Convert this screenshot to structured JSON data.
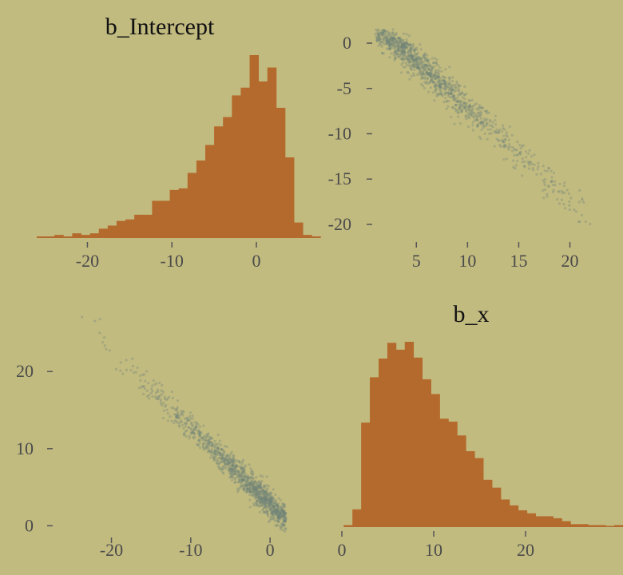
{
  "chart_data": [
    {
      "type": "bar",
      "panel": "top-left",
      "title": "b_Intercept",
      "xlim": [
        -26,
        3.5
      ],
      "x_ticks": [
        "-20",
        "-10",
        "0"
      ],
      "x_tick_values": [
        -20,
        -10,
        0
      ],
      "bin_start": -26,
      "bin_width": 1.05,
      "counts": [
        1,
        1,
        2,
        1,
        3,
        2,
        3,
        6,
        8,
        11,
        12,
        15,
        15,
        24,
        24,
        31,
        32,
        42,
        50,
        60,
        72,
        78,
        92,
        97,
        118,
        101,
        110,
        84,
        52,
        10,
        2,
        1
      ],
      "color": "#b46a2c"
    },
    {
      "type": "scatter",
      "panel": "top-right",
      "xlabel_param": "b_x",
      "ylabel_param": "b_Intercept",
      "xlim": [
        1,
        23
      ],
      "ylim": [
        -21.5,
        1.5
      ],
      "x_ticks": [
        "5",
        "10",
        "15",
        "20"
      ],
      "x_tick_values": [
        5,
        10,
        15,
        20
      ],
      "y_ticks": [
        "0",
        "-5",
        "-10",
        "-15",
        "-20"
      ],
      "y_tick_values": [
        0,
        -5,
        -10,
        -15,
        -20
      ],
      "relationship": {
        "slope": -0.95,
        "intercept": 3.6
      },
      "n_points": 1400,
      "color": "#6f8578"
    },
    {
      "type": "scatter",
      "panel": "bottom-left",
      "xlabel_param": "b_Intercept",
      "ylabel_param": "b_x",
      "xlim": [
        -27,
        2
      ],
      "ylim": [
        -1,
        28
      ],
      "x_ticks": [
        "-20",
        "-10",
        "0"
      ],
      "x_tick_values": [
        -20,
        -10,
        0
      ],
      "y_ticks": [
        "20",
        "10",
        "0"
      ],
      "y_tick_values": [
        20,
        10,
        0
      ],
      "relationship": {
        "slope": -1.0,
        "intercept": 3.0
      },
      "n_points": 1400,
      "color": "#6f8578"
    },
    {
      "type": "bar",
      "panel": "bottom-right",
      "title": "b_x",
      "xlim": [
        0,
        28
      ],
      "x_ticks": [
        "0",
        "10",
        "20"
      ],
      "x_tick_values": [
        0,
        10,
        20
      ],
      "bin_start": 0.2,
      "bin_width": 0.95,
      "counts": [
        2,
        18,
        106,
        152,
        171,
        187,
        180,
        188,
        172,
        150,
        135,
        110,
        107,
        93,
        77,
        70,
        48,
        40,
        28,
        22,
        17,
        14,
        11,
        11,
        9,
        6,
        3,
        3,
        2,
        2,
        1,
        2,
        1,
        2
      ],
      "color": "#b46a2c"
    }
  ]
}
